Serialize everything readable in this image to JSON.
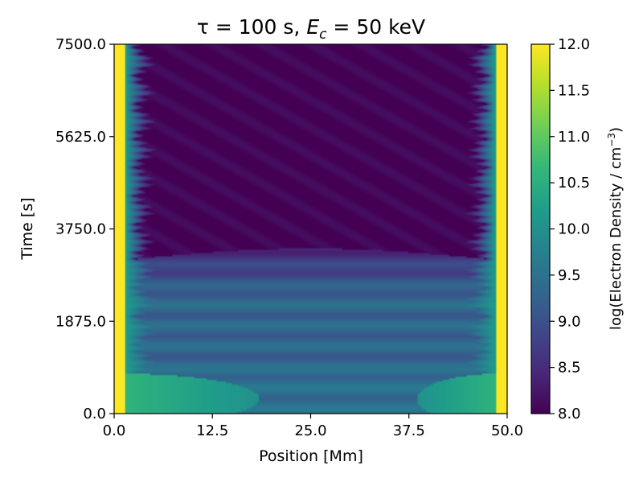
{
  "chart_data": {
    "type": "heatmap",
    "title_prefix": "τ = 100 s, ",
    "title_var": "E",
    "title_sub": "c",
    "title_suffix": " = 50 keV",
    "xlabel": "Position [Mm]",
    "ylabel": "Time [s]",
    "xlim": [
      0.0,
      50.0
    ],
    "ylim": [
      0.0,
      7500.0
    ],
    "xticks": [
      0.0,
      12.5,
      25.0,
      37.5,
      50.0
    ],
    "xtick_labels": [
      "0.0",
      "12.5",
      "25.0",
      "37.5",
      "50.0"
    ],
    "yticks": [
      0.0,
      1875.0,
      3750.0,
      5625.0,
      7500.0
    ],
    "ytick_labels": [
      "0.0",
      "1875.0",
      "3750.0",
      "5625.0",
      "7500.0"
    ],
    "colorbar": {
      "label_main": "log(Electron Density / cm",
      "label_exp": "−3",
      "label_close": ")",
      "min": 8.0,
      "max": 12.0,
      "ticks": [
        8.0,
        8.5,
        9.0,
        9.5,
        10.0,
        10.5,
        11.0,
        11.5,
        12.0
      ],
      "tick_labels": [
        "8.0",
        "8.5",
        "9.0",
        "9.5",
        "10.0",
        "10.5",
        "11.0",
        "11.5",
        "12.0"
      ],
      "colormap": "viridis",
      "colormap_stops": [
        "#440154",
        "#482878",
        "#3e4989",
        "#31688e",
        "#26828e",
        "#1f9e89",
        "#35b779",
        "#6ece58",
        "#b5de2b",
        "#fde725"
      ]
    },
    "features": {
      "footpoint_value": 12.0,
      "footpoint_width_mm": 1.5,
      "transition_value": 10.2,
      "transition_width_mm": 2.5,
      "evacuated_after_s": 3100,
      "evacuated_value": 8.0,
      "filled_phase_value": 9.3,
      "filled_phase_band_period_s": 420,
      "initial_pulse_lobes": [
        {
          "x_from_mm": 1.0,
          "x_to_mm": 18.5,
          "t_peak_s": 300,
          "value": 10.6
        },
        {
          "x_from_mm": 38.5,
          "x_to_mm": 49.0,
          "t_peak_s": 300,
          "value": 10.6
        }
      ]
    }
  }
}
